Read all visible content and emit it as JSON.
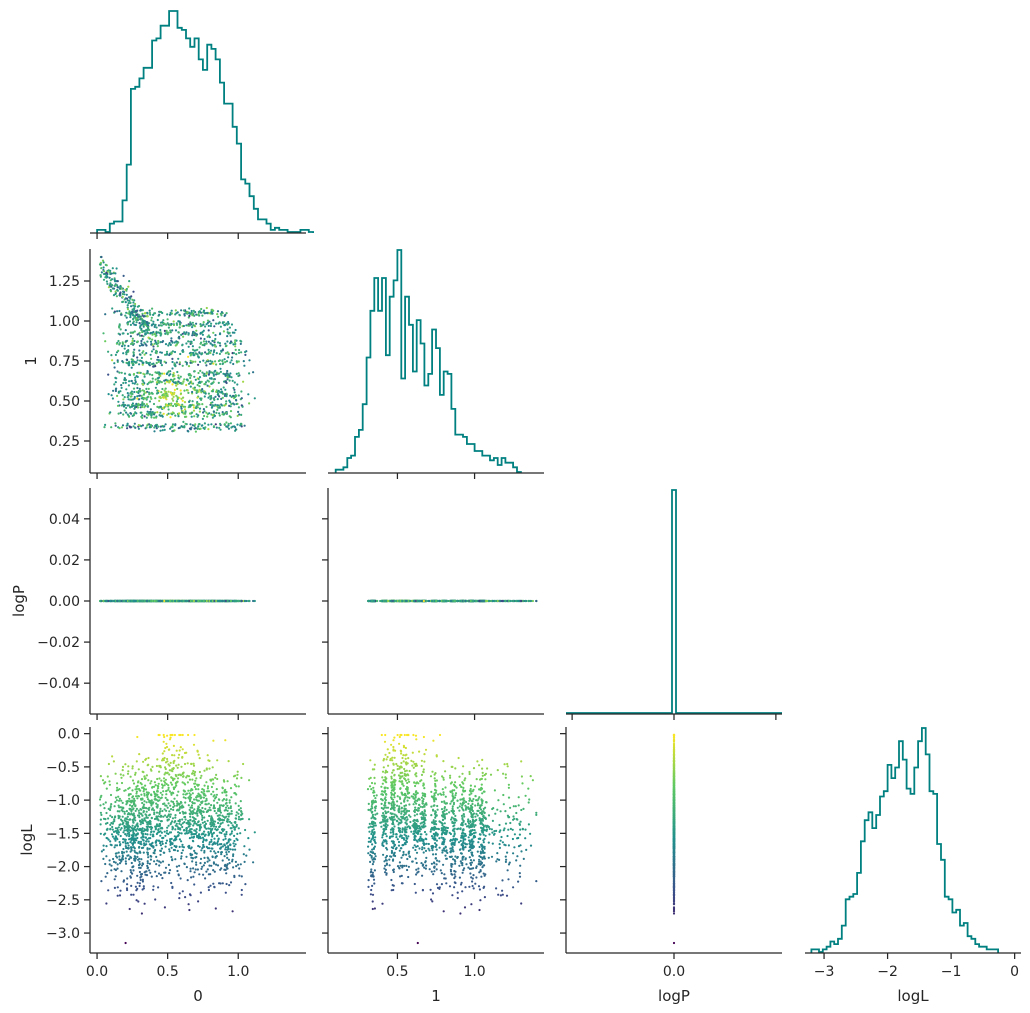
{
  "chart_data": {
    "type": "corner",
    "variables": [
      "0",
      "1",
      "logP",
      "logL"
    ],
    "axis_labels": {
      "x": [
        "0",
        "1",
        "logP",
        "logL"
      ],
      "y": [
        "",
        "1",
        "logP",
        "logL"
      ]
    },
    "ranges": {
      "0": [
        -0.05,
        1.48
      ],
      "1": [
        0.05,
        1.45
      ],
      "logP": [
        -0.055,
        0.055
      ],
      "logL": [
        -3.3,
        0.1
      ]
    },
    "histogram_xrange": {
      "logP": [
        -0.53,
        0.53
      ]
    },
    "ticks": {
      "0": [
        0.0,
        0.5,
        1.0
      ],
      "1": [
        0.25,
        0.5,
        0.75,
        1.0,
        1.25
      ],
      "1_x": [
        0.5,
        1.0
      ],
      "logP": [
        -0.04,
        -0.02,
        0.0,
        0.02,
        0.04
      ],
      "logP_x": [
        -0.5,
        0.0,
        0.5
      ],
      "logL": [
        -3.0,
        -2.5,
        -2.0,
        -1.5,
        -1.0,
        -0.5,
        0.0
      ],
      "logL_x": [
        -3,
        -2,
        -1,
        0
      ]
    },
    "tick_labels": {
      "0": [
        "0.0",
        "0.5",
        "1.0"
      ],
      "1": [
        "0.25",
        "0.50",
        "0.75",
        "1.00",
        "1.25"
      ],
      "1_x": [
        "0.5",
        "1.0"
      ],
      "logP": [
        "−0.04",
        "−0.02",
        "0.00",
        "0.02",
        "0.04"
      ],
      "logP_x": [
        "−0.5",
        "0.0",
        "0.5"
      ],
      "logL": [
        "−3.0",
        "−2.5",
        "−2.0",
        "−1.5",
        "−1.0",
        "−0.5",
        "0.0"
      ],
      "logL_x": [
        "−3",
        "−2",
        "−1",
        "0"
      ]
    },
    "histograms": {
      "0": {
        "start": 0.0,
        "bin_width": 0.03,
        "counts": [
          1,
          1,
          0,
          4,
          5,
          5,
          15,
          32,
          68,
          69,
          73,
          78,
          78,
          91,
          92,
          98,
          98,
          105,
          105,
          97,
          96,
          92,
          88,
          92,
          82,
          77,
          89,
          87,
          82,
          71,
          61,
          61,
          50,
          42,
          25,
          23,
          17,
          11,
          6,
          6,
          4,
          1,
          2,
          1,
          1,
          0,
          0,
          0,
          1,
          1,
          0
        ]
      },
      "1": {
        "start": 0.1,
        "bin_width": 0.025,
        "counts": [
          1,
          1,
          2,
          6,
          7,
          15,
          18,
          29,
          49,
          69,
          83,
          69,
          83,
          50,
          75,
          82,
          95,
          40,
          75,
          63,
          43,
          65,
          55,
          37,
          42,
          61,
          53,
          33,
          43,
          42,
          27,
          16,
          16,
          15,
          12,
          12,
          9,
          9,
          7,
          7,
          5,
          6,
          3,
          6,
          4,
          4,
          2,
          0
        ]
      },
      "logP": {
        "value": 0.0,
        "count": 100,
        "bin_width": 0.02
      },
      "logL": {
        "start": -3.2,
        "bin_width": 0.06,
        "counts": [
          1,
          1,
          0,
          1,
          2,
          4,
          3,
          5,
          10,
          20,
          21,
          22,
          30,
          42,
          50,
          53,
          47,
          52,
          59,
          61,
          71,
          66,
          70,
          80,
          73,
          62,
          60,
          70,
          80,
          85,
          75,
          61,
          60,
          41,
          35,
          21,
          20,
          15,
          16,
          10,
          11,
          6,
          5,
          3,
          2,
          2,
          1,
          1,
          1
        ]
      }
    },
    "scatter_color_by": "logL",
    "colormap": [
      "#440154",
      "#3b528b",
      "#21918c",
      "#5ec962",
      "#fde725"
    ],
    "hist_color": "#008080",
    "n_points": 1800
  }
}
